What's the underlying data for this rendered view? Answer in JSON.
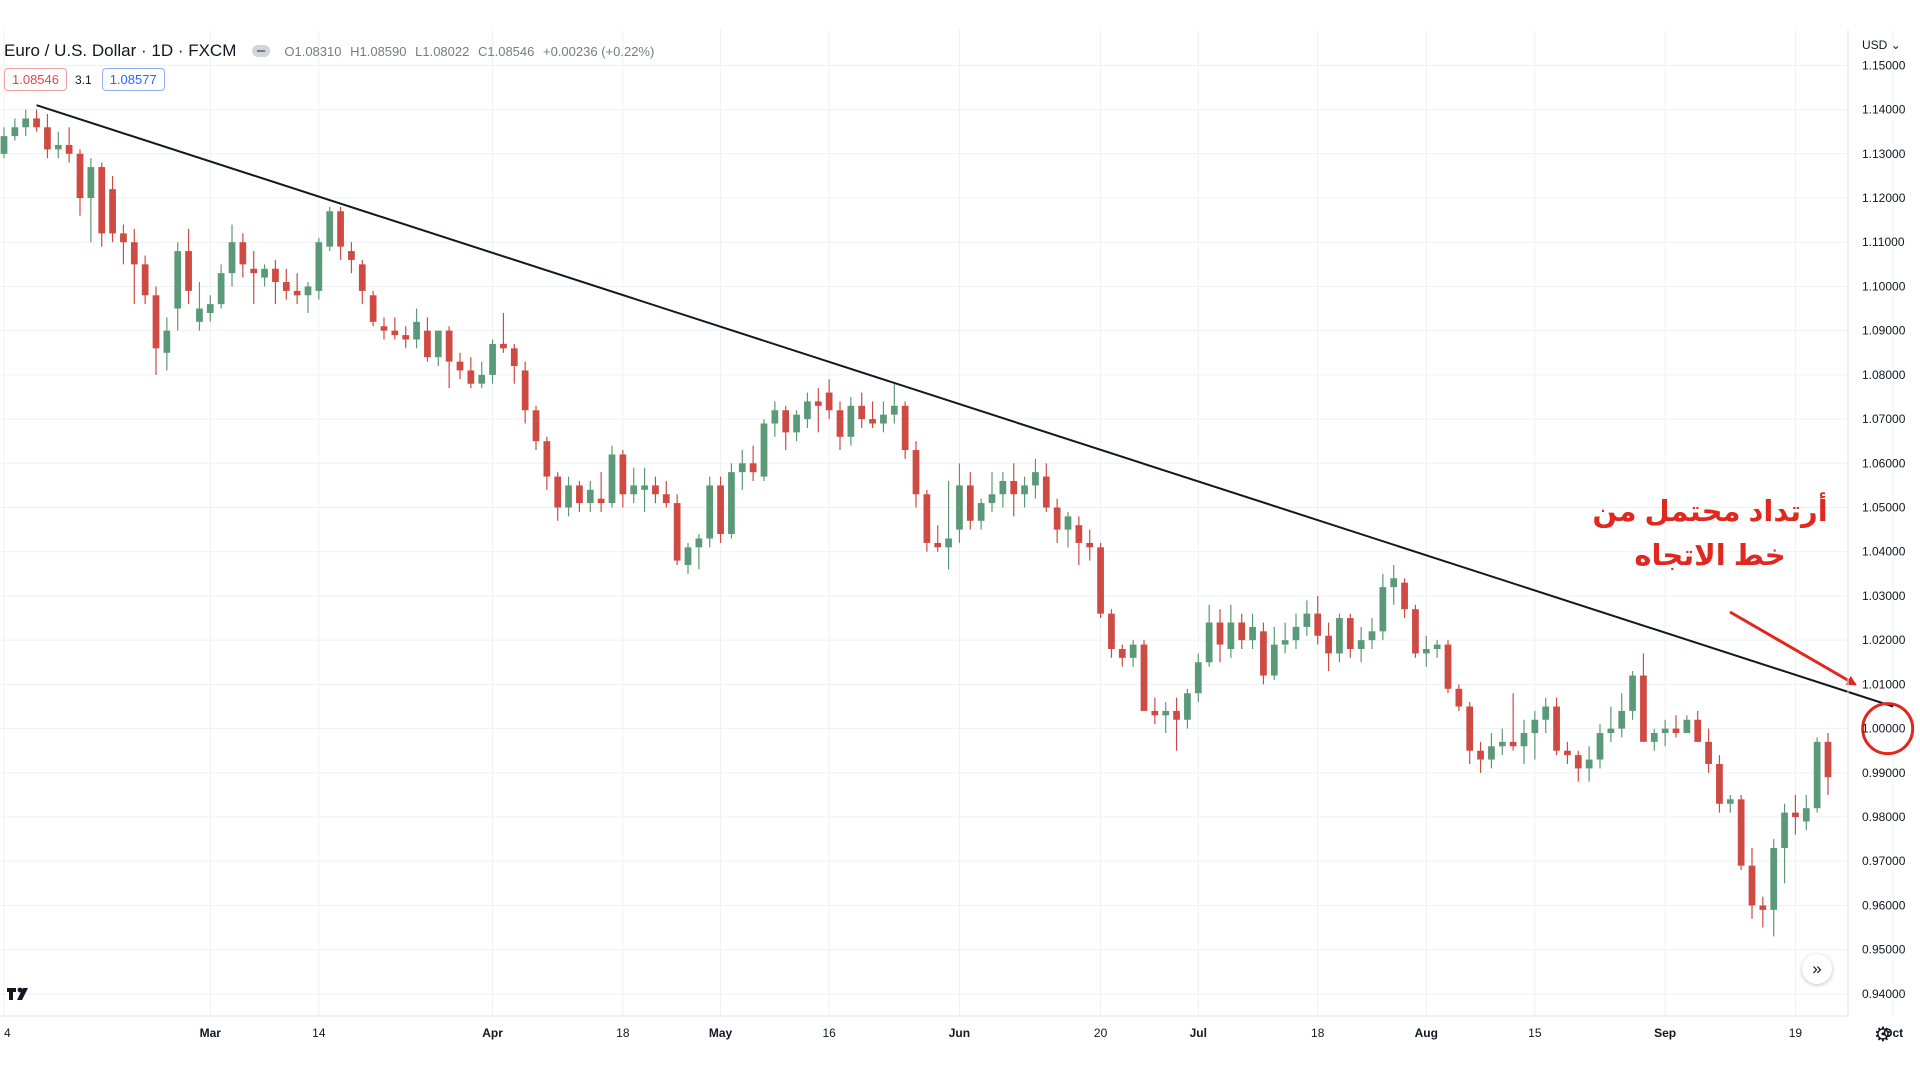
{
  "header": {
    "symbol": "Euro / U.S. Dollar · 1D · FXCM",
    "open": "O1.08310",
    "high": "H1.08590",
    "low": "L1.08022",
    "close": "C1.08546",
    "change": "+0.00236 (+0.22%)",
    "sell_price": "1.08546",
    "spread": "3.1",
    "buy_price": "1.08577"
  },
  "annotation": {
    "text": "أرتداد محتمل من\nخط الاتجاه",
    "color": "#e0281e"
  },
  "price_axis": {
    "currency_label": "USD"
  },
  "icons": {
    "logo": "tradingview-logo-icon",
    "scroll": "double-chevron-right-icon",
    "settings": "gear-icon",
    "eye": "eye-icon"
  },
  "colors": {
    "up": "#5b9a78",
    "down": "#cf4a43",
    "trendline": "#131722",
    "grid": "#eef0f4"
  },
  "chart_data": {
    "type": "candlestick",
    "ylim": [
      0.935,
      1.158
    ],
    "y_ticks": [
      "1.15000",
      "1.14000",
      "1.13000",
      "1.12000",
      "1.11000",
      "1.10000",
      "1.09000",
      "1.08000",
      "1.07000",
      "1.06000",
      "1.05000",
      "1.04000",
      "1.03000",
      "1.02000",
      "1.01000",
      "1.00000",
      "0.99000",
      "0.98000",
      "0.97000",
      "0.96000",
      "0.95000",
      "0.94000"
    ],
    "x_labels": [
      {
        "label": "4",
        "t": 0
      },
      {
        "label": "Mar",
        "t": 19
      },
      {
        "label": "14",
        "t": 29
      },
      {
        "label": "Apr",
        "t": 45
      },
      {
        "label": "18",
        "t": 57
      },
      {
        "label": "May",
        "t": 66
      },
      {
        "label": "16",
        "t": 76
      },
      {
        "label": "Jun",
        "t": 88
      },
      {
        "label": "20",
        "t": 101
      },
      {
        "label": "Jul",
        "t": 110
      },
      {
        "label": "18",
        "t": 121
      },
      {
        "label": "Aug",
        "t": 131
      },
      {
        "label": "15",
        "t": 141
      },
      {
        "label": "Sep",
        "t": 153
      },
      {
        "label": "19",
        "t": 165
      },
      {
        "label": "Oct",
        "t": 174
      }
    ],
    "ohlc": [
      [
        1.13,
        1.136,
        1.129,
        1.134
      ],
      [
        1.134,
        1.138,
        1.133,
        1.136
      ],
      [
        1.136,
        1.14,
        1.134,
        1.138
      ],
      [
        1.138,
        1.14,
        1.135,
        1.136
      ],
      [
        1.136,
        1.139,
        1.129,
        1.131
      ],
      [
        1.131,
        1.135,
        1.129,
        1.132
      ],
      [
        1.132,
        1.136,
        1.128,
        1.13
      ],
      [
        1.13,
        1.131,
        1.116,
        1.12
      ],
      [
        1.12,
        1.129,
        1.11,
        1.127
      ],
      [
        1.127,
        1.128,
        1.109,
        1.112
      ],
      [
        1.122,
        1.125,
        1.11,
        1.112
      ],
      [
        1.112,
        1.114,
        1.105,
        1.11
      ],
      [
        1.11,
        1.113,
        1.096,
        1.105
      ],
      [
        1.105,
        1.107,
        1.096,
        1.098
      ],
      [
        1.098,
        1.1,
        1.08,
        1.086
      ],
      [
        1.085,
        1.093,
        1.081,
        1.09
      ],
      [
        1.095,
        1.11,
        1.09,
        1.108
      ],
      [
        1.108,
        1.113,
        1.096,
        1.099
      ],
      [
        1.092,
        1.101,
        1.09,
        1.095
      ],
      [
        1.094,
        1.098,
        1.092,
        1.096
      ],
      [
        1.096,
        1.105,
        1.095,
        1.103
      ],
      [
        1.103,
        1.114,
        1.1,
        1.11
      ],
      [
        1.11,
        1.112,
        1.102,
        1.105
      ],
      [
        1.104,
        1.108,
        1.096,
        1.103
      ],
      [
        1.102,
        1.105,
        1.1,
        1.104
      ],
      [
        1.104,
        1.106,
        1.096,
        1.101
      ],
      [
        1.101,
        1.104,
        1.097,
        1.099
      ],
      [
        1.099,
        1.103,
        1.096,
        1.098
      ],
      [
        1.098,
        1.101,
        1.094,
        1.1
      ],
      [
        1.099,
        1.111,
        1.097,
        1.11
      ],
      [
        1.109,
        1.118,
        1.108,
        1.117
      ],
      [
        1.117,
        1.118,
        1.106,
        1.109
      ],
      [
        1.108,
        1.11,
        1.103,
        1.106
      ],
      [
        1.105,
        1.106,
        1.096,
        1.099
      ],
      [
        1.098,
        1.099,
        1.091,
        1.092
      ],
      [
        1.091,
        1.093,
        1.088,
        1.09
      ],
      [
        1.09,
        1.093,
        1.088,
        1.089
      ],
      [
        1.089,
        1.091,
        1.086,
        1.088
      ],
      [
        1.088,
        1.095,
        1.086,
        1.092
      ],
      [
        1.09,
        1.093,
        1.083,
        1.084
      ],
      [
        1.084,
        1.089,
        1.082,
        1.09
      ],
      [
        1.09,
        1.091,
        1.077,
        1.083
      ],
      [
        1.083,
        1.085,
        1.079,
        1.081
      ],
      [
        1.081,
        1.084,
        1.077,
        1.078
      ],
      [
        1.078,
        1.083,
        1.077,
        1.08
      ],
      [
        1.08,
        1.088,
        1.078,
        1.087
      ],
      [
        1.087,
        1.094,
        1.085,
        1.086
      ],
      [
        1.086,
        1.087,
        1.078,
        1.082
      ],
      [
        1.081,
        1.083,
        1.069,
        1.072
      ],
      [
        1.072,
        1.073,
        1.063,
        1.065
      ],
      [
        1.065,
        1.066,
        1.054,
        1.057
      ],
      [
        1.057,
        1.058,
        1.047,
        1.05
      ],
      [
        1.05,
        1.057,
        1.048,
        1.055
      ],
      [
        1.055,
        1.056,
        1.049,
        1.051
      ],
      [
        1.051,
        1.056,
        1.049,
        1.054
      ],
      [
        1.052,
        1.058,
        1.049,
        1.051
      ],
      [
        1.051,
        1.064,
        1.05,
        1.062
      ],
      [
        1.062,
        1.063,
        1.05,
        1.053
      ],
      [
        1.053,
        1.059,
        1.051,
        1.055
      ],
      [
        1.054,
        1.059,
        1.049,
        1.055
      ],
      [
        1.055,
        1.057,
        1.051,
        1.053
      ],
      [
        1.053,
        1.056,
        1.05,
        1.051
      ],
      [
        1.051,
        1.053,
        1.037,
        1.038
      ],
      [
        1.037,
        1.042,
        1.035,
        1.041
      ],
      [
        1.041,
        1.044,
        1.036,
        1.043
      ],
      [
        1.043,
        1.057,
        1.041,
        1.055
      ],
      [
        1.055,
        1.057,
        1.042,
        1.044
      ],
      [
        1.044,
        1.06,
        1.043,
        1.058
      ],
      [
        1.058,
        1.063,
        1.054,
        1.06
      ],
      [
        1.06,
        1.064,
        1.056,
        1.058
      ],
      [
        1.057,
        1.07,
        1.056,
        1.069
      ],
      [
        1.069,
        1.074,
        1.066,
        1.072
      ],
      [
        1.072,
        1.073,
        1.063,
        1.067
      ],
      [
        1.067,
        1.072,
        1.065,
        1.071
      ],
      [
        1.07,
        1.076,
        1.068,
        1.074
      ],
      [
        1.074,
        1.077,
        1.067,
        1.073
      ],
      [
        1.076,
        1.079,
        1.07,
        1.072
      ],
      [
        1.072,
        1.074,
        1.063,
        1.066
      ],
      [
        1.066,
        1.075,
        1.064,
        1.073
      ],
      [
        1.073,
        1.076,
        1.068,
        1.07
      ],
      [
        1.07,
        1.074,
        1.068,
        1.069
      ],
      [
        1.069,
        1.074,
        1.067,
        1.071
      ],
      [
        1.071,
        1.078,
        1.069,
        1.073
      ],
      [
        1.073,
        1.074,
        1.061,
        1.063
      ],
      [
        1.063,
        1.065,
        1.05,
        1.053
      ],
      [
        1.053,
        1.054,
        1.04,
        1.042
      ],
      [
        1.042,
        1.046,
        1.04,
        1.041
      ],
      [
        1.041,
        1.056,
        1.036,
        1.043
      ],
      [
        1.045,
        1.06,
        1.042,
        1.055
      ],
      [
        1.055,
        1.058,
        1.045,
        1.047
      ],
      [
        1.047,
        1.052,
        1.045,
        1.051
      ],
      [
        1.051,
        1.058,
        1.049,
        1.053
      ],
      [
        1.053,
        1.058,
        1.05,
        1.056
      ],
      [
        1.056,
        1.06,
        1.048,
        1.053
      ],
      [
        1.053,
        1.057,
        1.05,
        1.055
      ],
      [
        1.055,
        1.061,
        1.052,
        1.058
      ],
      [
        1.057,
        1.06,
        1.049,
        1.05
      ],
      [
        1.05,
        1.052,
        1.042,
        1.045
      ],
      [
        1.045,
        1.049,
        1.041,
        1.048
      ],
      [
        1.046,
        1.048,
        1.037,
        1.042
      ],
      [
        1.042,
        1.045,
        1.038,
        1.041
      ],
      [
        1.041,
        1.042,
        1.025,
        1.026
      ],
      [
        1.026,
        1.027,
        1.016,
        1.018
      ],
      [
        1.018,
        1.019,
        1.014,
        1.016
      ],
      [
        1.016,
        1.02,
        1.014,
        1.019
      ],
      [
        1.019,
        1.02,
        1.006,
        1.004
      ],
      [
        1.004,
        1.007,
        1.001,
        1.003
      ],
      [
        1.003,
        1.006,
        0.999,
        1.004
      ],
      [
        1.004,
        1.007,
        0.995,
        1.002
      ],
      [
        1.002,
        1.009,
        1.0,
        1.008
      ],
      [
        1.008,
        1.017,
        1.006,
        1.015
      ],
      [
        1.015,
        1.028,
        1.014,
        1.024
      ],
      [
        1.024,
        1.027,
        1.015,
        1.019
      ],
      [
        1.018,
        1.028,
        1.016,
        1.024
      ],
      [
        1.024,
        1.026,
        1.018,
        1.02
      ],
      [
        1.02,
        1.026,
        1.018,
        1.023
      ],
      [
        1.022,
        1.024,
        1.01,
        1.012
      ],
      [
        1.012,
        1.023,
        1.011,
        1.019
      ],
      [
        1.019,
        1.024,
        1.017,
        1.02
      ],
      [
        1.02,
        1.026,
        1.018,
        1.023
      ],
      [
        1.023,
        1.029,
        1.021,
        1.026
      ],
      [
        1.026,
        1.03,
        1.019,
        1.021
      ],
      [
        1.021,
        1.024,
        1.013,
        1.017
      ],
      [
        1.017,
        1.026,
        1.015,
        1.025
      ],
      [
        1.025,
        1.026,
        1.016,
        1.018
      ],
      [
        1.018,
        1.023,
        1.015,
        1.02
      ],
      [
        1.02,
        1.025,
        1.018,
        1.022
      ],
      [
        1.022,
        1.035,
        1.02,
        1.032
      ],
      [
        1.032,
        1.037,
        1.028,
        1.034
      ],
      [
        1.033,
        1.034,
        1.025,
        1.027
      ],
      [
        1.027,
        1.028,
        1.016,
        1.017
      ],
      [
        1.017,
        1.021,
        1.014,
        1.018
      ],
      [
        1.018,
        1.02,
        1.016,
        1.019
      ],
      [
        1.019,
        1.02,
        1.008,
        1.009
      ],
      [
        1.009,
        1.01,
        1.004,
        1.005
      ],
      [
        1.005,
        1.006,
        0.992,
        0.995
      ],
      [
        0.995,
        0.997,
        0.99,
        0.993
      ],
      [
        0.993,
        0.999,
        0.991,
        0.996
      ],
      [
        0.996,
        1.0,
        0.994,
        0.997
      ],
      [
        0.997,
        1.008,
        0.995,
        0.996
      ],
      [
        0.996,
        1.002,
        0.992,
        0.999
      ],
      [
        0.999,
        1.004,
        0.993,
        1.002
      ],
      [
        1.002,
        1.007,
        0.999,
        1.005
      ],
      [
        1.005,
        1.007,
        0.994,
        0.995
      ],
      [
        0.995,
        0.997,
        0.992,
        0.994
      ],
      [
        0.994,
        0.995,
        0.988,
        0.991
      ],
      [
        0.991,
        0.996,
        0.988,
        0.993
      ],
      [
        0.993,
        1.001,
        0.991,
        0.999
      ],
      [
        0.999,
        1.005,
        0.997,
        1.0
      ],
      [
        1.0,
        1.008,
        0.998,
        1.004
      ],
      [
        1.004,
        1.013,
        1.002,
        1.012
      ],
      [
        1.012,
        1.017,
        0.998,
        0.997
      ],
      [
        0.997,
        1.0,
        0.995,
        0.999
      ],
      [
        0.999,
        1.002,
        0.996,
        1.0
      ],
      [
        1.0,
        1.003,
        0.998,
        0.999
      ],
      [
        0.999,
        1.003,
        0.999,
        1.002
      ],
      [
        1.002,
        1.004,
        0.997,
        0.997
      ],
      [
        0.997,
        1.0,
        0.99,
        0.992
      ],
      [
        0.992,
        0.994,
        0.981,
        0.983
      ],
      [
        0.983,
        0.985,
        0.981,
        0.984
      ],
      [
        0.984,
        0.985,
        0.968,
        0.969
      ],
      [
        0.969,
        0.973,
        0.957,
        0.96
      ],
      [
        0.96,
        0.962,
        0.955,
        0.959
      ],
      [
        0.959,
        0.975,
        0.953,
        0.973
      ],
      [
        0.973,
        0.983,
        0.965,
        0.981
      ],
      [
        0.981,
        0.985,
        0.976,
        0.98
      ],
      [
        0.979,
        0.985,
        0.977,
        0.982
      ],
      [
        0.982,
        0.998,
        0.981,
        0.997
      ],
      [
        0.997,
        0.999,
        0.985,
        0.989
      ]
    ],
    "trendline": {
      "from": {
        "t": 3,
        "price": 1.141
      },
      "to": {
        "t": 174,
        "price": 1.005
      }
    },
    "highlight_circle": {
      "t": 173.5,
      "price": 1.0
    },
    "annotation_arrow": {
      "to": {
        "t": 170.5,
        "price": 1.01
      }
    }
  }
}
